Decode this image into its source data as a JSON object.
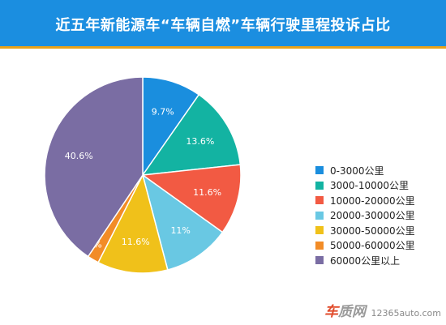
{
  "title": "近五年新能源车“车辆自燃”车辆行驶里程投诉占比",
  "chart_data": {
    "type": "pie",
    "categories": [
      "0-3000公里",
      "3000-10000公里",
      "10000-20000公里",
      "20000-30000公里",
      "30000-50000公里",
      "50000-60000公里",
      "60000公里以上"
    ],
    "values": [
      9.7,
      13.6,
      11.6,
      11,
      11.6,
      1.9,
      40.6
    ],
    "data_labels": [
      "9.7%",
      "13.6%",
      "11.6%",
      "11%",
      "11.6%",
      "1.9%",
      "40.6%"
    ],
    "colors": [
      "#1a8ede",
      "#13b3a2",
      "#f25a43",
      "#69c8e3",
      "#f0c11a",
      "#f28c27",
      "#7a6da3"
    ],
    "start_angle": "12 o'clock",
    "direction": "clockwise",
    "legend_position": "right"
  },
  "watermark": {
    "logo_part1": "车",
    "logo_part2": "质网",
    "url": "12365auto.com"
  }
}
